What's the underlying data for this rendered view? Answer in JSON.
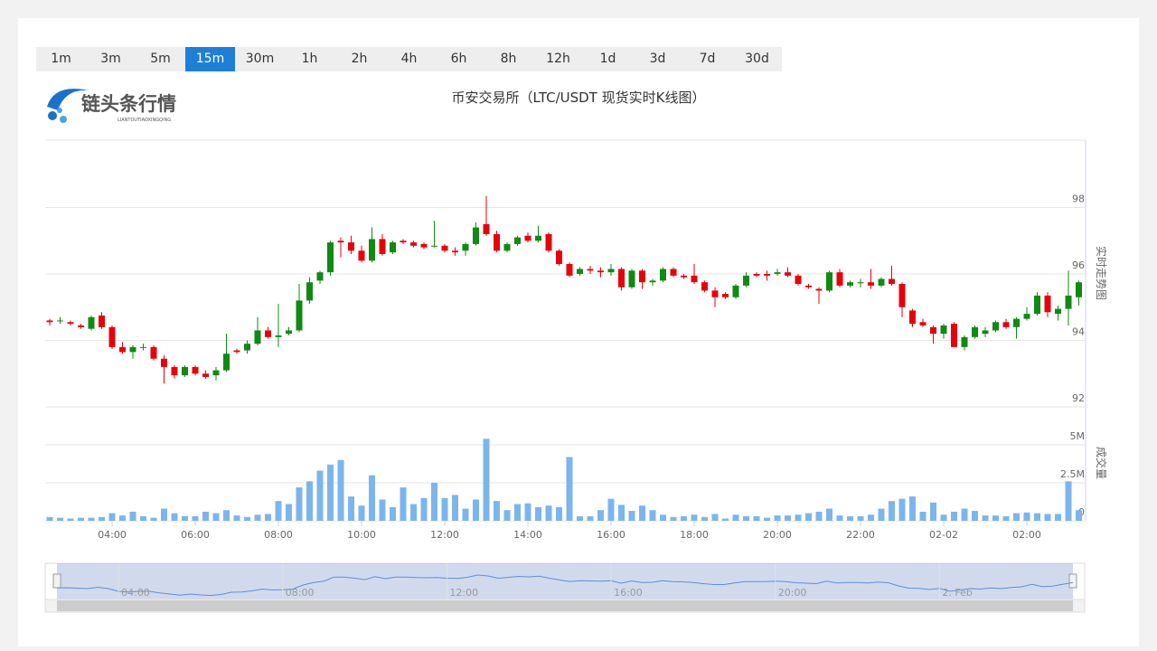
{
  "periods": [
    "1m",
    "3m",
    "5m",
    "15m",
    "30m",
    "1h",
    "2h",
    "4h",
    "6h",
    "8h",
    "12h",
    "1d",
    "3d",
    "7d",
    "30d"
  ],
  "active_period": "15m",
  "logo": {
    "name": "链头条行情",
    "pinyin": "LIANTOUTIAOXINGQING"
  },
  "chart_data": {
    "type": "candlestick",
    "title": "币安交易所（LTC/USDT 现货实时K线图）",
    "y_label": "实时走势图",
    "volume_label": "成交量",
    "up_color": "#0f8a12",
    "down_color": "#e8000b",
    "volume_color": "#7cb5ec",
    "categories": [
      null,
      null,
      null,
      null,
      null,
      null,
      "04:00",
      null,
      null,
      null,
      null,
      null,
      null,
      null,
      "06:00",
      null,
      null,
      null,
      null,
      null,
      null,
      null,
      "08:00",
      null,
      null,
      null,
      null,
      null,
      null,
      null,
      "10:00",
      null,
      null,
      null,
      null,
      null,
      null,
      null,
      "12:00",
      null,
      null,
      null,
      null,
      null,
      null,
      null,
      "14:00",
      null,
      null,
      null,
      null,
      null,
      null,
      null,
      "16:00",
      null,
      null,
      null,
      null,
      null,
      null,
      null,
      "18:00",
      null,
      null,
      null,
      null,
      null,
      null,
      null,
      "20:00",
      null,
      null,
      null,
      null,
      null,
      null,
      null,
      "22:00",
      null,
      null,
      null,
      null,
      null,
      null,
      null,
      "02-02",
      null,
      null,
      null,
      null,
      null,
      null,
      null,
      "02:00",
      null,
      null,
      null,
      null,
      null
    ],
    "candles": [
      [
        94.6,
        94.65,
        94.45,
        94.55
      ],
      [
        94.6,
        94.7,
        94.5,
        94.6
      ],
      [
        94.55,
        94.6,
        94.45,
        94.5
      ],
      [
        94.45,
        94.5,
        94.35,
        94.4
      ],
      [
        94.35,
        94.75,
        94.3,
        94.7
      ],
      [
        94.75,
        94.85,
        94.35,
        94.4
      ],
      [
        94.4,
        94.45,
        93.75,
        93.8
      ],
      [
        93.8,
        93.95,
        93.6,
        93.65
      ],
      [
        93.65,
        93.85,
        93.45,
        93.8
      ],
      [
        93.8,
        93.9,
        93.7,
        93.8
      ],
      [
        93.8,
        93.85,
        93.4,
        93.45
      ],
      [
        93.45,
        93.55,
        92.7,
        93.2
      ],
      [
        93.2,
        93.25,
        92.85,
        92.95
      ],
      [
        92.95,
        93.25,
        92.9,
        93.2
      ],
      [
        93.2,
        93.25,
        92.95,
        93.0
      ],
      [
        93.0,
        93.1,
        92.85,
        92.9
      ],
      [
        92.95,
        93.2,
        92.8,
        93.1
      ],
      [
        93.1,
        94.2,
        93.05,
        93.6
      ],
      [
        93.7,
        93.75,
        93.6,
        93.65
      ],
      [
        93.7,
        94.0,
        93.6,
        93.9
      ],
      [
        93.9,
        94.7,
        93.85,
        94.3
      ],
      [
        94.3,
        94.4,
        94.05,
        94.1
      ],
      [
        94.1,
        95.1,
        93.8,
        94.15
      ],
      [
        94.2,
        94.4,
        94.15,
        94.3
      ],
      [
        94.3,
        95.7,
        94.25,
        95.2
      ],
      [
        95.2,
        95.9,
        95.1,
        95.75
      ],
      [
        95.8,
        96.1,
        95.7,
        96.05
      ],
      [
        96.05,
        97.0,
        95.95,
        96.95
      ],
      [
        97.0,
        97.1,
        96.5,
        96.95
      ],
      [
        96.95,
        97.15,
        96.6,
        96.7
      ],
      [
        96.7,
        96.85,
        96.35,
        96.4
      ],
      [
        96.4,
        97.4,
        96.35,
        97.05
      ],
      [
        97.05,
        97.2,
        96.55,
        96.6
      ],
      [
        96.65,
        97.0,
        96.6,
        96.95
      ],
      [
        97.0,
        97.05,
        96.9,
        96.95
      ],
      [
        96.95,
        97.0,
        96.8,
        96.85
      ],
      [
        96.9,
        96.95,
        96.75,
        96.8
      ],
      [
        96.85,
        97.6,
        96.8,
        96.85
      ],
      [
        96.85,
        96.9,
        96.65,
        96.7
      ],
      [
        96.7,
        96.8,
        96.55,
        96.65
      ],
      [
        96.7,
        96.95,
        96.55,
        96.9
      ],
      [
        96.9,
        97.55,
        96.85,
        97.4
      ],
      [
        97.5,
        98.35,
        97.15,
        97.2
      ],
      [
        97.2,
        97.3,
        96.65,
        96.7
      ],
      [
        96.7,
        96.95,
        96.65,
        96.9
      ],
      [
        96.9,
        97.15,
        96.85,
        97.1
      ],
      [
        97.15,
        97.25,
        96.95,
        97.0
      ],
      [
        97.0,
        97.45,
        96.95,
        97.15
      ],
      [
        97.2,
        97.25,
        96.65,
        96.7
      ],
      [
        96.7,
        96.75,
        96.25,
        96.3
      ],
      [
        96.3,
        96.35,
        95.9,
        95.95
      ],
      [
        96.0,
        96.2,
        95.95,
        96.15
      ],
      [
        96.15,
        96.25,
        96.0,
        96.1
      ],
      [
        96.1,
        96.2,
        95.9,
        96.05
      ],
      [
        96.05,
        96.3,
        95.95,
        96.15
      ],
      [
        96.15,
        96.2,
        95.5,
        95.6
      ],
      [
        95.6,
        96.15,
        95.55,
        96.1
      ],
      [
        96.1,
        96.15,
        95.55,
        95.75
      ],
      [
        95.75,
        95.85,
        95.65,
        95.8
      ],
      [
        95.8,
        96.2,
        95.75,
        96.15
      ],
      [
        96.15,
        96.2,
        95.9,
        95.95
      ],
      [
        95.95,
        96.0,
        95.85,
        95.9
      ],
      [
        95.95,
        96.3,
        95.7,
        95.75
      ],
      [
        95.75,
        95.8,
        95.45,
        95.5
      ],
      [
        95.5,
        95.6,
        95.0,
        95.3
      ],
      [
        95.4,
        95.45,
        95.25,
        95.3
      ],
      [
        95.3,
        95.7,
        95.25,
        95.65
      ],
      [
        95.65,
        96.05,
        95.6,
        95.95
      ],
      [
        96.0,
        96.05,
        95.9,
        95.95
      ],
      [
        96.0,
        96.1,
        95.8,
        95.95
      ],
      [
        96.0,
        96.15,
        95.95,
        96.05
      ],
      [
        96.05,
        96.2,
        95.9,
        95.95
      ],
      [
        95.95,
        96.0,
        95.65,
        95.7
      ],
      [
        95.65,
        95.7,
        95.55,
        95.6
      ],
      [
        95.55,
        95.6,
        95.1,
        95.5
      ],
      [
        95.5,
        96.1,
        95.45,
        96.05
      ],
      [
        96.05,
        96.15,
        95.6,
        95.65
      ],
      [
        95.65,
        95.8,
        95.6,
        95.75
      ],
      [
        95.72,
        95.85,
        95.6,
        95.75
      ],
      [
        95.75,
        96.15,
        95.55,
        95.65
      ],
      [
        95.65,
        95.9,
        95.6,
        95.85
      ],
      [
        95.85,
        96.25,
        95.65,
        95.7
      ],
      [
        95.7,
        95.75,
        94.7,
        95.0
      ],
      [
        94.9,
        94.95,
        94.4,
        94.5
      ],
      [
        94.55,
        94.65,
        94.4,
        94.45
      ],
      [
        94.4,
        94.45,
        93.9,
        94.2
      ],
      [
        94.2,
        94.5,
        94.05,
        94.45
      ],
      [
        94.5,
        94.55,
        93.8,
        93.8
      ],
      [
        93.8,
        94.15,
        93.7,
        94.1
      ],
      [
        94.1,
        94.45,
        94.05,
        94.4
      ],
      [
        94.2,
        94.4,
        94.1,
        94.3
      ],
      [
        94.3,
        94.6,
        94.25,
        94.55
      ],
      [
        94.55,
        94.65,
        94.35,
        94.4
      ],
      [
        94.4,
        94.7,
        94.05,
        94.65
      ],
      [
        94.65,
        95.0,
        94.6,
        94.8
      ],
      [
        94.8,
        95.45,
        94.75,
        95.35
      ],
      [
        95.35,
        95.45,
        94.7,
        94.85
      ],
      [
        94.8,
        95.05,
        94.6,
        94.95
      ],
      [
        94.95,
        96.1,
        94.45,
        95.35
      ],
      [
        95.3,
        95.8,
        95.05,
        95.75
      ]
    ],
    "volume": [
      0.25,
      0.2,
      0.15,
      0.2,
      0.2,
      0.25,
      0.5,
      0.35,
      0.6,
      0.3,
      0.2,
      0.8,
      0.5,
      0.3,
      0.3,
      0.6,
      0.5,
      0.7,
      0.35,
      0.25,
      0.4,
      0.45,
      1.3,
      1.1,
      2.2,
      2.6,
      3.3,
      3.7,
      4.0,
      1.6,
      1.0,
      3.0,
      1.4,
      0.9,
      2.2,
      1.1,
      1.5,
      2.5,
      1.5,
      1.7,
      0.8,
      1.4,
      5.4,
      1.3,
      0.7,
      1.1,
      1.15,
      0.9,
      1.0,
      0.9,
      4.2,
      0.3,
      0.3,
      0.7,
      1.45,
      1.05,
      0.65,
      1.0,
      0.7,
      0.4,
      0.25,
      0.3,
      0.4,
      0.25,
      0.45,
      0.15,
      0.4,
      0.3,
      0.3,
      0.2,
      0.35,
      0.35,
      0.4,
      0.5,
      0.6,
      0.8,
      0.35,
      0.3,
      0.3,
      0.4,
      0.8,
      1.3,
      1.45,
      1.6,
      0.6,
      1.2,
      0.4,
      0.6,
      0.8,
      0.65,
      0.35,
      0.35,
      0.3,
      0.5,
      0.55,
      0.5,
      0.45,
      0.45,
      2.6,
      0.7
    ],
    "ylim": [
      92,
      100
    ],
    "yticks": [
      92,
      94,
      96,
      98
    ],
    "vlim": [
      0,
      7.5
    ],
    "vticks": [
      {
        "value": 0,
        "label": "0"
      },
      {
        "value": 2.5,
        "label": "2.5M"
      },
      {
        "value": 5,
        "label": "5M"
      }
    ],
    "navigator_labels": [
      "04:00",
      "08:00",
      "12:00",
      "16:00",
      "20:00",
      "2. Feb"
    ]
  }
}
